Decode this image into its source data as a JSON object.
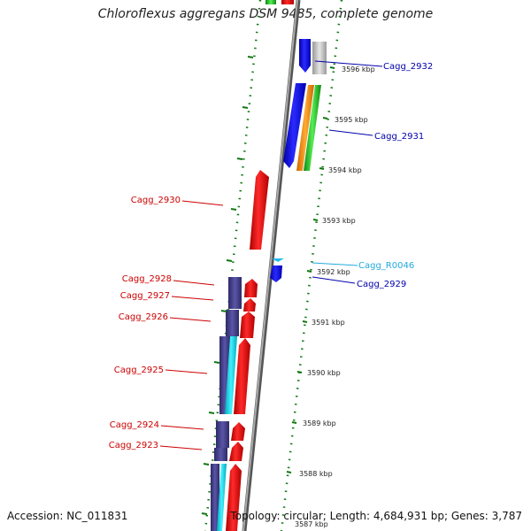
{
  "title": "Chloroflexus aggregans DSM 9485, complete genome",
  "accession": "Accession: NC_011831",
  "topology": "Topology: circular; Length: 4,684,931 bp; Genes: 3,787",
  "kbp_ticks": [
    "3596 kbp",
    "3595 kbp",
    "3594 kbp",
    "3593 kbp",
    "3592 kbp",
    "3591 kbp",
    "3590 kbp",
    "3589 kbp",
    "3588 kbp",
    "3587 kbp"
  ],
  "gene_labels": [
    {
      "text": "Cagg_2932",
      "color": "#0000aa"
    },
    {
      "text": "Cagg_2931",
      "color": "#0000aa"
    },
    {
      "text": "Cagg_R0046",
      "color": "#22aadd"
    },
    {
      "text": "Cagg_2929",
      "color": "#0000aa"
    },
    {
      "text": "Cagg_2930",
      "color": "#cc0000"
    },
    {
      "text": "Cagg_2928",
      "color": "#cc0000"
    },
    {
      "text": "Cagg_2927",
      "color": "#cc0000"
    },
    {
      "text": "Cagg_2926",
      "color": "#cc0000"
    },
    {
      "text": "Cagg_2925",
      "color": "#cc0000"
    },
    {
      "text": "Cagg_2924",
      "color": "#cc0000"
    },
    {
      "text": "Cagg_2923",
      "color": "#cc0000"
    }
  ],
  "colors": {
    "forward_cds": "#ee1111",
    "reverse_cds": "#1111ee",
    "cog_purple": "#443f88",
    "cog_cyan": "#11ddee",
    "orange": "#ff8800",
    "green": "#33cc33",
    "gray": "#bbbbbb",
    "backbone": "#888888",
    "ruler_green": "#117711"
  }
}
